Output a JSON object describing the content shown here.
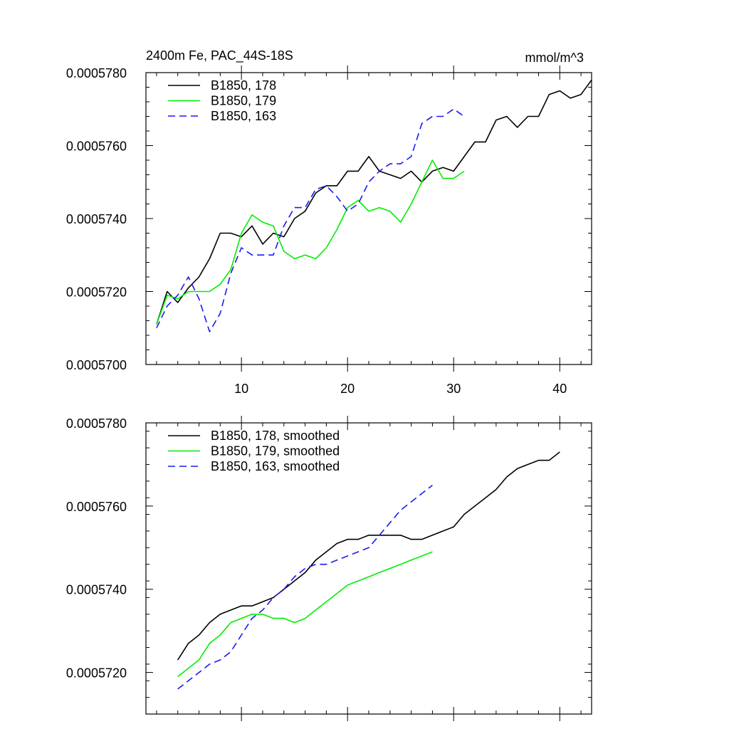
{
  "chart_data": [
    {
      "type": "line",
      "title": "2400m Fe, PAC_44S-18S",
      "units_label": "mmol/m^3",
      "xlabel": "",
      "ylabel": "",
      "xlim": [
        1,
        43
      ],
      "ylim": [
        0.00057,
        0.000578
      ],
      "xticks": [
        10,
        20,
        30,
        40
      ],
      "xtick_labels": [
        "10",
        "20",
        "30",
        "40"
      ],
      "yticks": [
        0.00057,
        0.000572,
        0.000574,
        0.000576,
        0.000578
      ],
      "ytick_labels": [
        "0.0005700",
        "0.0005720",
        "0.0005740",
        "0.0005760",
        "0.0005780"
      ],
      "legend_position": "top-left",
      "series": [
        {
          "name": "B1850, 178",
          "color": "#000000",
          "dash": "solid",
          "x": [
            2,
            3,
            4,
            5,
            6,
            7,
            8,
            9,
            10,
            11,
            12,
            13,
            14,
            15,
            16,
            17,
            18,
            19,
            20,
            21,
            22,
            23,
            24,
            25,
            26,
            27,
            28,
            29,
            30,
            31,
            32,
            33,
            34,
            35,
            36,
            37,
            38,
            39,
            40,
            41,
            42,
            43
          ],
          "y": [
            0.0005711,
            0.000572,
            0.0005717,
            0.0005721,
            0.0005724,
            0.0005729,
            0.0005736,
            0.0005736,
            0.0005735,
            0.0005738,
            0.0005733,
            0.0005736,
            0.0005735,
            0.000574,
            0.0005742,
            0.0005747,
            0.0005749,
            0.0005749,
            0.0005753,
            0.0005753,
            0.0005757,
            0.0005753,
            0.0005752,
            0.0005751,
            0.0005753,
            0.000575,
            0.0005753,
            0.0005754,
            0.0005753,
            0.0005757,
            0.0005761,
            0.0005761,
            0.0005767,
            0.0005768,
            0.0005765,
            0.0005768,
            0.0005768,
            0.0005774,
            0.0005775,
            0.0005773,
            0.0005774,
            0.0005778
          ]
        },
        {
          "name": "B1850, 179",
          "color": "#00ee00",
          "dash": "solid",
          "x": [
            2,
            3,
            4,
            5,
            6,
            7,
            8,
            9,
            10,
            11,
            12,
            13,
            14,
            15,
            16,
            17,
            18,
            19,
            20,
            21,
            22,
            23,
            24,
            25,
            26,
            27,
            28,
            29,
            30,
            31
          ],
          "y": [
            0.0005711,
            0.0005719,
            0.0005718,
            0.000572,
            0.000572,
            0.000572,
            0.0005722,
            0.0005726,
            0.0005736,
            0.0005741,
            0.0005739,
            0.0005738,
            0.0005731,
            0.0005729,
            0.000573,
            0.0005729,
            0.0005732,
            0.0005737,
            0.0005743,
            0.0005745,
            0.0005742,
            0.0005743,
            0.0005742,
            0.0005739,
            0.0005744,
            0.000575,
            0.0005756,
            0.0005751,
            0.0005751,
            0.0005753
          ]
        },
        {
          "name": "B1850, 163",
          "color": "#1a1aee",
          "dash": "dashed",
          "x": [
            2,
            3,
            4,
            5,
            6,
            7,
            8,
            9,
            10,
            11,
            12,
            13,
            14,
            15,
            16,
            17,
            18,
            19,
            20,
            21,
            22,
            23,
            24,
            25,
            26,
            27,
            28,
            29,
            30,
            31
          ],
          "y": [
            0.000571,
            0.0005716,
            0.0005719,
            0.0005724,
            0.0005718,
            0.0005709,
            0.0005714,
            0.0005725,
            0.0005732,
            0.000573,
            0.000573,
            0.000573,
            0.0005738,
            0.0005743,
            0.0005743,
            0.0005748,
            0.0005749,
            0.0005746,
            0.0005742,
            0.0005744,
            0.000575,
            0.0005753,
            0.0005755,
            0.0005755,
            0.0005757,
            0.0005766,
            0.0005768,
            0.0005768,
            0.000577,
            0.0005768
          ]
        }
      ]
    },
    {
      "type": "line",
      "title": "",
      "xlabel": "",
      "ylabel": "",
      "xlim": [
        1,
        43
      ],
      "ylim": [
        0.000571,
        0.000578
      ],
      "xticks": [
        10,
        20,
        30,
        40
      ],
      "xtick_labels": [],
      "yticks": [
        0.000572,
        0.000574,
        0.000576,
        0.000578
      ],
      "ytick_labels": [
        "0.0005720",
        "0.0005740",
        "0.0005760",
        "0.0005780"
      ],
      "legend_position": "top-left",
      "series": [
        {
          "name": "B1850, 178, smoothed",
          "color": "#000000",
          "dash": "solid",
          "x": [
            4,
            5,
            6,
            7,
            8,
            9,
            10,
            11,
            12,
            13,
            14,
            15,
            16,
            17,
            18,
            19,
            20,
            21,
            22,
            23,
            24,
            25,
            26,
            27,
            28,
            29,
            30,
            31,
            32,
            33,
            34,
            35,
            36,
            37,
            38,
            39,
            40
          ],
          "y": [
            0.0005723,
            0.0005727,
            0.0005729,
            0.0005732,
            0.0005734,
            0.0005735,
            0.0005736,
            0.0005736,
            0.0005737,
            0.0005738,
            0.000574,
            0.0005742,
            0.0005744,
            0.0005747,
            0.0005749,
            0.0005751,
            0.0005752,
            0.0005752,
            0.0005753,
            0.0005753,
            0.0005753,
            0.0005753,
            0.0005752,
            0.0005752,
            0.0005753,
            0.0005754,
            0.0005755,
            0.0005758,
            0.000576,
            0.0005762,
            0.0005764,
            0.0005767,
            0.0005769,
            0.000577,
            0.0005771,
            0.0005771,
            0.0005773
          ]
        },
        {
          "name": "B1850, 179, smoothed",
          "color": "#00ee00",
          "dash": "solid",
          "x": [
            4,
            5,
            6,
            7,
            8,
            9,
            10,
            11,
            12,
            13,
            14,
            15,
            16,
            17,
            18,
            19,
            20,
            21,
            22,
            23,
            24,
            25,
            26,
            27,
            28
          ],
          "y": [
            0.0005719,
            0.0005721,
            0.0005723,
            0.0005727,
            0.0005729,
            0.0005732,
            0.0005733,
            0.0005734,
            0.0005734,
            0.0005733,
            0.0005733,
            0.0005732,
            0.0005733,
            0.0005735,
            0.0005737,
            0.0005739,
            0.0005741,
            0.0005742,
            0.0005743,
            0.0005744,
            0.0005745,
            0.0005746,
            0.0005747,
            0.0005748,
            0.0005749
          ]
        },
        {
          "name": "B1850, 163, smoothed",
          "color": "#1a1aee",
          "dash": "dashed",
          "x": [
            4,
            5,
            6,
            7,
            8,
            9,
            10,
            11,
            12,
            13,
            14,
            15,
            16,
            17,
            18,
            19,
            20,
            21,
            22,
            23,
            24,
            25,
            26,
            27,
            28
          ],
          "y": [
            0.0005716,
            0.0005718,
            0.000572,
            0.0005722,
            0.0005723,
            0.0005725,
            0.0005729,
            0.0005733,
            0.0005735,
            0.0005738,
            0.000574,
            0.0005743,
            0.0005745,
            0.0005746,
            0.0005746,
            0.0005747,
            0.0005748,
            0.0005749,
            0.000575,
            0.0005753,
            0.0005756,
            0.0005759,
            0.0005761,
            0.0005763,
            0.0005765
          ]
        }
      ]
    }
  ]
}
